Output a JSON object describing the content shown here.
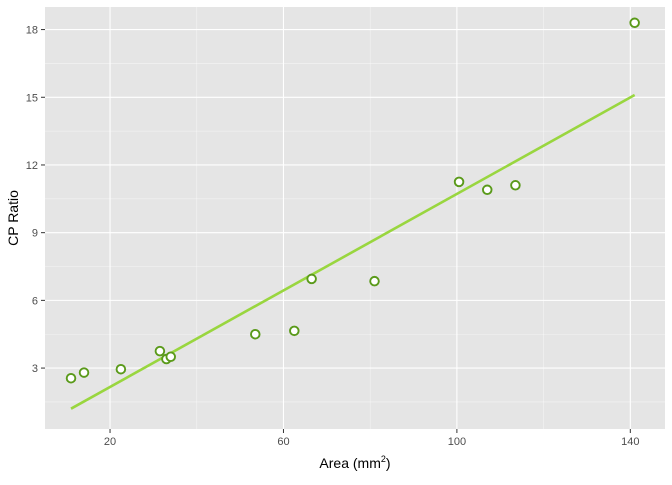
{
  "chart_data": {
    "type": "scatter",
    "xlabel": "Area (mm",
    "xlabel_superscript": "2",
    "xlabel_suffix": ")",
    "ylabel": "CP Ratio",
    "xlim": [
      5,
      148
    ],
    "ylim": [
      0.3,
      19
    ],
    "xticks": [
      20,
      60,
      100,
      140
    ],
    "yticks": [
      3,
      6,
      9,
      12,
      15,
      18
    ],
    "grid": true,
    "point_color": "#5a9a1a",
    "line_color": "#99d63f",
    "panel_color": "#e5e5e5",
    "points": [
      {
        "x": 11,
        "y": 2.55
      },
      {
        "x": 14,
        "y": 2.8
      },
      {
        "x": 22.5,
        "y": 2.95
      },
      {
        "x": 31.5,
        "y": 3.75
      },
      {
        "x": 33,
        "y": 3.4
      },
      {
        "x": 34,
        "y": 3.5
      },
      {
        "x": 53.5,
        "y": 4.5
      },
      {
        "x": 62.5,
        "y": 4.65
      },
      {
        "x": 66.5,
        "y": 6.95
      },
      {
        "x": 81,
        "y": 6.85
      },
      {
        "x": 100.5,
        "y": 11.25
      },
      {
        "x": 107,
        "y": 10.9
      },
      {
        "x": 113.5,
        "y": 11.1
      },
      {
        "x": 141,
        "y": 18.3
      }
    ],
    "fit_line": {
      "x": [
        11,
        141
      ],
      "y": [
        1.2,
        15.1
      ]
    }
  }
}
